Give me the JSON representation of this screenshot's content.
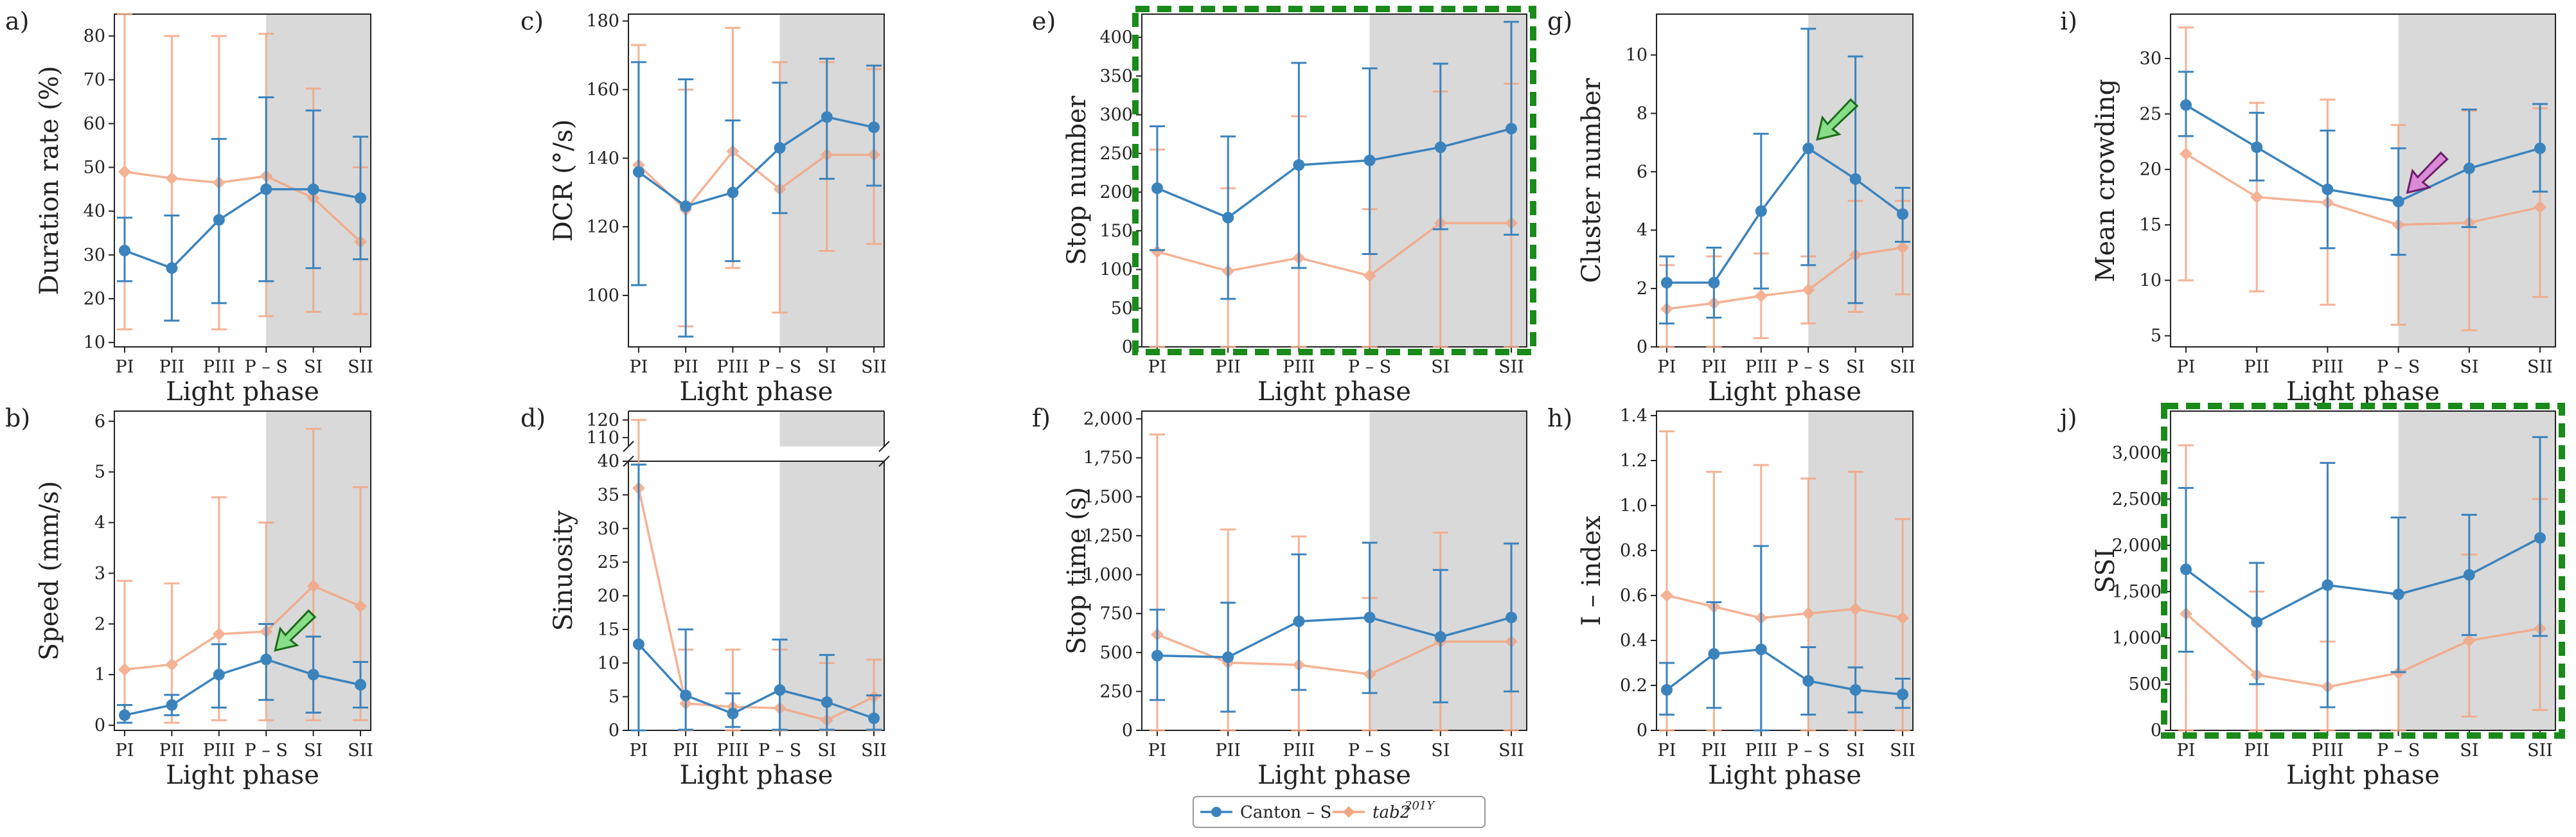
{
  "figure": {
    "colors": {
      "canton": "#3b83bd",
      "tab2": "#f4a582",
      "shade": "#d9d9d9",
      "highlight": "#1a8a1a",
      "green_arrow": "#88dd88",
      "purple_arrow": "#d98bd6"
    },
    "x_categories": [
      "PI",
      "PII",
      "PIII",
      "P – S",
      "SI",
      "SII"
    ],
    "x_label": "Light phase",
    "legend": {
      "canton": "Canton – S",
      "tab2": "tab2",
      "tab2_sup": "201Y"
    }
  },
  "chart_data": [
    {
      "id": "a",
      "letter": "a)",
      "type": "line",
      "ylabel": "Duration rate (%)",
      "ylim": [
        9,
        85
      ],
      "yticks": [
        10,
        20,
        30,
        40,
        50,
        60,
        70,
        80
      ],
      "tick_labels": [
        "10",
        "20",
        "30",
        "40",
        "50",
        "60",
        "70",
        "80"
      ],
      "shaded_from": "P – S",
      "highlight": false,
      "arrow": null,
      "series": [
        {
          "name": "Canton – S",
          "values": [
            31,
            27,
            38,
            45,
            45,
            43
          ],
          "lower": [
            24,
            15,
            19,
            24,
            27,
            29
          ],
          "upper": [
            38.5,
            39,
            56.5,
            66,
            63,
            57
          ]
        },
        {
          "name": "tab2 201Y",
          "values": [
            49,
            47.5,
            46.5,
            48,
            43,
            33
          ],
          "lower": [
            13,
            15,
            13,
            16,
            17,
            16.5
          ],
          "upper": [
            85,
            80,
            80,
            80.5,
            68,
            50
          ]
        }
      ]
    },
    {
      "id": "b",
      "letter": "b)",
      "type": "line",
      "ylabel": "Speed (mm/s)",
      "ylim": [
        -0.1,
        6.2
      ],
      "yticks": [
        0,
        1,
        2,
        3,
        4,
        5,
        6
      ],
      "tick_labels": [
        "0",
        "1",
        "2",
        "3",
        "4",
        "5",
        "6"
      ],
      "shaded_from": "P – S",
      "highlight": false,
      "arrow": {
        "color": "green",
        "category": "P – S",
        "value": 1.3
      },
      "series": [
        {
          "name": "Canton – S",
          "values": [
            0.2,
            0.4,
            1.0,
            1.3,
            1.0,
            0.8
          ],
          "lower": [
            0.05,
            0.2,
            0.35,
            0.5,
            0.25,
            0.35
          ],
          "upper": [
            0.4,
            0.6,
            1.6,
            2.0,
            1.75,
            1.25
          ]
        },
        {
          "name": "tab2 201Y",
          "values": [
            1.1,
            1.2,
            1.8,
            1.85,
            2.75,
            2.35
          ],
          "lower": [
            0.05,
            0.05,
            0.1,
            0.1,
            0.1,
            0.1
          ],
          "upper": [
            2.85,
            2.8,
            4.5,
            4.0,
            5.85,
            4.7
          ]
        }
      ]
    },
    {
      "id": "c",
      "letter": "c)",
      "type": "line",
      "ylabel": "DCR (°/s)",
      "ylim": [
        85,
        182
      ],
      "yticks": [
        100,
        120,
        140,
        160,
        180
      ],
      "tick_labels": [
        "100",
        "120",
        "140",
        "160",
        "180"
      ],
      "shaded_from": "P – S",
      "highlight": false,
      "arrow": null,
      "series": [
        {
          "name": "Canton – S",
          "values": [
            136,
            126,
            130,
            143,
            152,
            149
          ],
          "lower": [
            103,
            88,
            110,
            124,
            134,
            132
          ],
          "upper": [
            168,
            163,
            151,
            162,
            169,
            167
          ]
        },
        {
          "name": "tab2 201Y",
          "values": [
            138,
            125,
            142,
            131,
            141,
            141
          ],
          "lower": [
            103,
            91,
            108,
            95,
            113,
            115
          ],
          "upper": [
            173,
            160,
            178,
            168,
            168,
            166
          ]
        }
      ]
    },
    {
      "id": "d",
      "letter": "d)",
      "type": "line",
      "ylabel": "Sinuosity",
      "ylim": [
        0,
        40
      ],
      "yticks": [
        0,
        5,
        10,
        15,
        20,
        25,
        30,
        35,
        40
      ],
      "tick_labels": [
        "0",
        "5",
        "10",
        "15",
        "20",
        "25",
        "30",
        "35",
        "40"
      ],
      "broken_axis": {
        "upper_ticks": [
          110,
          120
        ],
        "upper_tick_labels": [
          "110",
          "120"
        ],
        "upper_range": [
          105,
          125
        ]
      },
      "shaded_from": "P – S",
      "highlight": false,
      "arrow": null,
      "series": [
        {
          "name": "Canton – S",
          "values": [
            12.8,
            5.2,
            2.5,
            6.0,
            4.2,
            1.8
          ],
          "lower": [
            0,
            0.1,
            0.5,
            0.1,
            0.1,
            0.1
          ],
          "upper": [
            39.5,
            15,
            5.5,
            13.5,
            11.2,
            5.2
          ]
        },
        {
          "name": "tab2 201Y",
          "values": [
            36,
            4.0,
            3.5,
            3.3,
            1.5,
            5.0
          ],
          "lower": [
            0,
            0,
            0,
            0,
            0,
            0
          ],
          "upper": [
            120,
            12,
            12,
            12,
            10,
            10.5
          ]
        }
      ]
    },
    {
      "id": "e",
      "letter": "e)",
      "type": "line",
      "ylabel": "Stop number",
      "ylim": [
        0,
        430
      ],
      "yticks": [
        0,
        50,
        100,
        150,
        200,
        250,
        300,
        350,
        400
      ],
      "tick_labels": [
        "0",
        "50",
        "100",
        "150",
        "200",
        "250",
        "300",
        "350",
        "400"
      ],
      "shaded_from": "P – S",
      "highlight": true,
      "arrow": null,
      "series": [
        {
          "name": "Canton – S",
          "values": [
            205,
            167,
            235,
            241,
            258,
            282
          ],
          "lower": [
            125,
            62,
            102,
            120,
            152,
            145
          ],
          "upper": [
            285,
            272,
            367,
            360,
            366,
            420
          ]
        },
        {
          "name": "tab2 201Y",
          "values": [
            123,
            98,
            115,
            92,
            160,
            160
          ],
          "lower": [
            0,
            0,
            0,
            0,
            0,
            0
          ],
          "upper": [
            255,
            205,
            298,
            178,
            330,
            340
          ]
        }
      ]
    },
    {
      "id": "f",
      "letter": "f)",
      "type": "line",
      "ylabel": "Stop time (s)",
      "ylim": [
        0,
        2050
      ],
      "yticks": [
        0,
        250,
        500,
        750,
        1000,
        1250,
        1500,
        1750,
        2000
      ],
      "tick_labels": [
        "0",
        "250",
        "500",
        "750",
        "1,000",
        "1,250",
        "1,500",
        "1,750",
        "2,000"
      ],
      "shaded_from": "P – S",
      "highlight": false,
      "arrow": null,
      "series": [
        {
          "name": "Canton – S",
          "values": [
            480,
            470,
            700,
            725,
            600,
            725
          ],
          "lower": [
            195,
            120,
            260,
            240,
            180,
            250
          ],
          "upper": [
            775,
            820,
            1130,
            1205,
            1030,
            1200
          ]
        },
        {
          "name": "tab2 201Y",
          "values": [
            615,
            435,
            420,
            360,
            570,
            570
          ],
          "lower": [
            0,
            0,
            0,
            0,
            0,
            0
          ],
          "upper": [
            1900,
            1290,
            1245,
            850,
            1270,
            1200
          ]
        }
      ]
    },
    {
      "id": "g",
      "letter": "g)",
      "type": "line",
      "ylabel": "Cluster number",
      "ylim": [
        0,
        11.4
      ],
      "yticks": [
        0,
        2,
        4,
        6,
        8,
        10
      ],
      "tick_labels": [
        "0",
        "2",
        "4",
        "6",
        "8",
        "10"
      ],
      "shaded_from": "P – S",
      "highlight": false,
      "arrow": {
        "color": "green",
        "category": "P – S",
        "value": 6.8
      },
      "series": [
        {
          "name": "Canton – S",
          "values": [
            2.2,
            2.2,
            4.65,
            6.8,
            5.75,
            4.55
          ],
          "lower": [
            0.8,
            1.0,
            2.0,
            2.8,
            1.5,
            3.6
          ],
          "upper": [
            3.1,
            3.4,
            7.3,
            10.9,
            9.95,
            5.45
          ]
        },
        {
          "name": "tab2 201Y",
          "values": [
            1.3,
            1.5,
            1.75,
            1.95,
            3.15,
            3.4
          ],
          "lower": [
            0,
            0,
            0.3,
            0.8,
            1.2,
            1.8
          ],
          "upper": [
            2.8,
            3.1,
            3.2,
            3.1,
            5.0,
            5.0
          ]
        }
      ]
    },
    {
      "id": "h",
      "letter": "h)",
      "type": "line",
      "ylabel": "I – index",
      "ylim": [
        0,
        1.42
      ],
      "yticks": [
        0,
        0.2,
        0.4,
        0.6,
        0.8,
        1.0,
        1.2,
        1.4
      ],
      "tick_labels": [
        "0",
        "0.2",
        "0.4",
        "0.6",
        "0.8",
        "1.0",
        "1.2",
        "1.4"
      ],
      "shaded_from": "P – S",
      "highlight": false,
      "arrow": null,
      "series": [
        {
          "name": "Canton – S",
          "values": [
            0.18,
            0.34,
            0.36,
            0.22,
            0.18,
            0.16
          ],
          "lower": [
            0.07,
            0.1,
            0.0,
            0.07,
            0.08,
            0.1
          ],
          "upper": [
            0.3,
            0.57,
            0.82,
            0.37,
            0.28,
            0.23
          ]
        },
        {
          "name": "tab2 201Y",
          "values": [
            0.6,
            0.55,
            0.5,
            0.52,
            0.54,
            0.5
          ],
          "lower": [
            0.0,
            0.0,
            0.0,
            0.0,
            0.0,
            0.0
          ],
          "upper": [
            1.33,
            1.15,
            1.18,
            1.12,
            1.15,
            0.94
          ]
        }
      ]
    },
    {
      "id": "i",
      "letter": "i)",
      "type": "line",
      "ylabel": "Mean crowding",
      "ylim": [
        4,
        34
      ],
      "yticks": [
        5,
        10,
        15,
        20,
        25,
        30
      ],
      "tick_labels": [
        "5",
        "10",
        "15",
        "20",
        "25",
        "30"
      ],
      "shaded_from": "P – S",
      "highlight": false,
      "arrow": {
        "color": "purple",
        "category": "P – S",
        "value": 17.1
      },
      "series": [
        {
          "name": "Canton – S",
          "values": [
            25.8,
            22.0,
            18.2,
            17.1,
            20.1,
            21.9
          ],
          "lower": [
            23.0,
            19.0,
            12.9,
            12.3,
            14.8,
            18.0
          ],
          "upper": [
            28.8,
            25.1,
            23.5,
            21.9,
            25.4,
            25.9
          ]
        },
        {
          "name": "tab2 201Y",
          "values": [
            21.4,
            17.5,
            17.0,
            15.0,
            15.2,
            16.6
          ],
          "lower": [
            10.0,
            9.0,
            7.8,
            6.0,
            5.5,
            8.5
          ],
          "upper": [
            32.8,
            26.0,
            26.3,
            24.0,
            25.3,
            25.5
          ]
        }
      ]
    },
    {
      "id": "j",
      "letter": "j)",
      "type": "line",
      "ylabel": "SSI",
      "ylim": [
        0,
        3450
      ],
      "yticks": [
        0,
        500,
        1000,
        1500,
        2000,
        2500,
        3000
      ],
      "tick_labels": [
        "0",
        "500",
        "1,000",
        "1,500",
        "2,000",
        "2,500",
        "3,000"
      ],
      "shaded_from": "P – S",
      "highlight": true,
      "arrow": null,
      "series": [
        {
          "name": "Canton – S",
          "values": [
            1740,
            1170,
            1570,
            1470,
            1680,
            2080
          ],
          "lower": [
            850,
            500,
            250,
            630,
            1030,
            1020
          ],
          "upper": [
            2620,
            1810,
            2890,
            2300,
            2330,
            3170
          ]
        },
        {
          "name": "tab2 201Y",
          "values": [
            1260,
            600,
            470,
            620,
            970,
            1100
          ],
          "lower": [
            0,
            0,
            0,
            0,
            150,
            220
          ],
          "upper": [
            3080,
            1500,
            960,
            1470,
            1900,
            2500
          ]
        }
      ]
    }
  ]
}
